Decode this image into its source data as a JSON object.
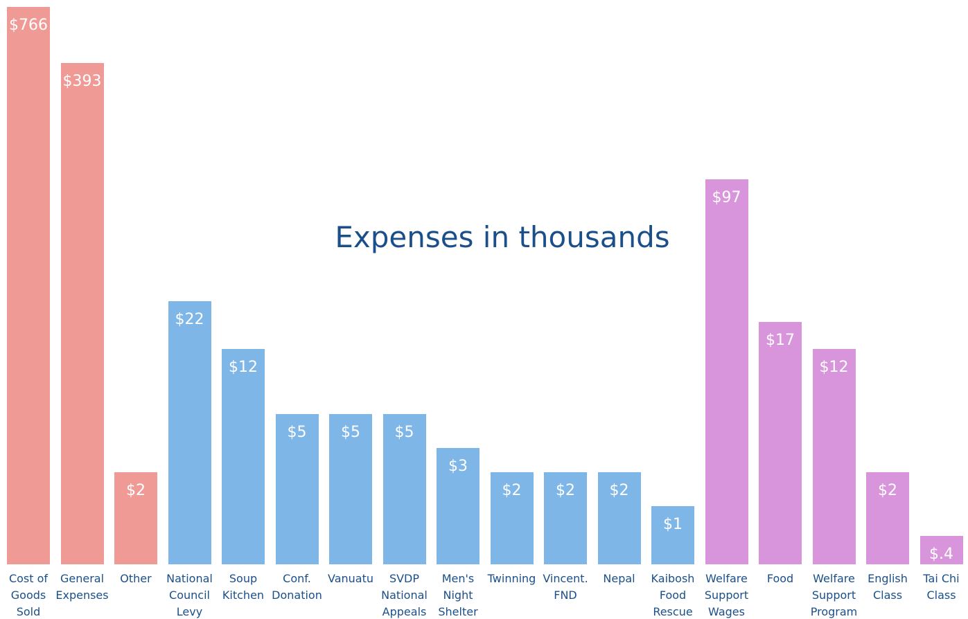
{
  "chart_data": {
    "type": "bar",
    "title": "Expenses in thousands",
    "categories": [
      "Cost of Goods Sold",
      "General Expenses",
      "Other",
      "National Council Levy",
      "Soup Kitchen",
      "Conf. Donation",
      "Vanuatu",
      "SVDP National Appeals",
      "Men's Night Shelter",
      "Twinning",
      "Vincent. FND",
      "Nepal",
      "Kaibosh Food Rescue",
      "Welfare Support Wages",
      "Food",
      "Welfare Support Program",
      "English Class",
      "Tai Chi Class"
    ],
    "values": [
      766,
      393,
      2,
      22,
      12,
      5,
      5,
      5,
      3,
      2,
      2,
      2,
      1,
      97,
      17,
      12,
      2,
      0.4
    ],
    "value_labels": [
      "$766",
      "$393",
      "$2",
      "$22",
      "$12",
      "$5",
      "$5",
      "$5",
      "$3",
      "$2",
      "$2",
      "$2",
      "$1",
      "$97",
      "$17",
      "$12",
      "$2",
      "$.4"
    ],
    "colors": [
      "#f09a96",
      "#f09a96",
      "#f09a96",
      "#7fb6e8",
      "#7fb6e8",
      "#7fb6e8",
      "#7fb6e8",
      "#7fb6e8",
      "#7fb6e8",
      "#7fb6e8",
      "#7fb6e8",
      "#7fb6e8",
      "#7fb6e8",
      "#d895dc",
      "#d895dc",
      "#d895dc",
      "#d895dc",
      "#d895dc"
    ]
  }
}
